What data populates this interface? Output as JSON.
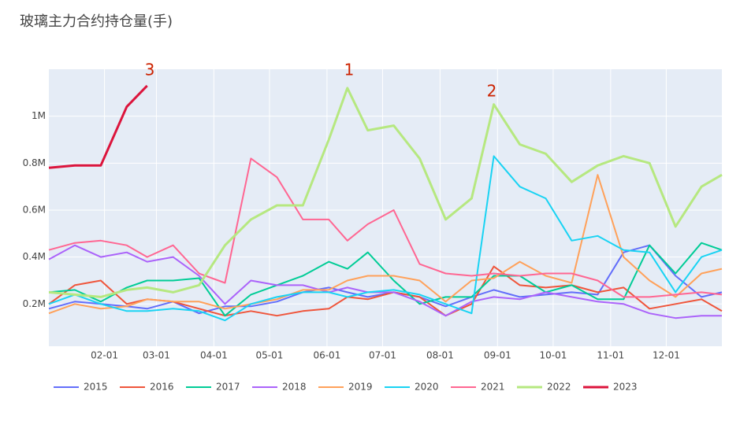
{
  "chart_data": {
    "type": "line",
    "title": "玻璃主力合约持仓量(手)",
    "x": [
      "01-02",
      "01-16",
      "01-30",
      "02-13",
      "02-24",
      "03-10",
      "03-24",
      "04-07",
      "04-21",
      "05-05",
      "05-19",
      "06-02",
      "06-12",
      "06-23",
      "07-07",
      "07-21",
      "08-04",
      "08-18",
      "08-30",
      "09-13",
      "09-27",
      "10-11",
      "10-25",
      "11-08",
      "11-22",
      "12-06",
      "12-20",
      "12-31"
    ],
    "xlim": [
      "01-02",
      "12-31"
    ],
    "xticks": [
      "02-01",
      "03-01",
      "04-01",
      "05-01",
      "06-01",
      "07-01",
      "08-01",
      "09-01",
      "10-01",
      "11-01",
      "12-01"
    ],
    "ylim": [
      20000,
      1200000
    ],
    "yticks": [
      {
        "value": 200000,
        "label": "0.2M"
      },
      {
        "value": 400000,
        "label": "0.4M"
      },
      {
        "value": 600000,
        "label": "0.6M"
      },
      {
        "value": 800000,
        "label": "0.8M"
      },
      {
        "value": 1000000,
        "label": "1M"
      }
    ],
    "grid": true,
    "legend": "bottom",
    "annotations": [
      "1",
      "2",
      "3"
    ],
    "series": [
      {
        "name": "2015",
        "color": "#636efa",
        "width": 2,
        "values": [
          180000,
          210000,
          200000,
          190000,
          180000,
          210000,
          160000,
          190000,
          190000,
          210000,
          250000,
          270000,
          250000,
          230000,
          250000,
          230000,
          190000,
          230000,
          260000,
          230000,
          240000,
          250000,
          240000,
          420000,
          450000,
          320000,
          230000,
          250000
        ]
      },
      {
        "name": "2016",
        "color": "#ef553b",
        "width": 2,
        "values": [
          200000,
          280000,
          300000,
          200000,
          220000,
          210000,
          180000,
          150000,
          170000,
          150000,
          170000,
          180000,
          230000,
          220000,
          250000,
          230000,
          150000,
          200000,
          360000,
          280000,
          270000,
          280000,
          250000,
          270000,
          180000,
          200000,
          220000,
          170000
        ]
      },
      {
        "name": "2017",
        "color": "#00cc96",
        "width": 2,
        "values": [
          250000,
          260000,
          210000,
          270000,
          300000,
          300000,
          310000,
          150000,
          240000,
          280000,
          320000,
          380000,
          350000,
          420000,
          300000,
          200000,
          230000,
          230000,
          320000,
          320000,
          250000,
          280000,
          220000,
          220000,
          450000,
          330000,
          460000,
          430000
        ]
      },
      {
        "name": "2018",
        "color": "#ab63fa",
        "width": 2,
        "values": [
          390000,
          450000,
          400000,
          420000,
          380000,
          400000,
          320000,
          200000,
          300000,
          280000,
          280000,
          250000,
          270000,
          250000,
          250000,
          210000,
          150000,
          210000,
          230000,
          220000,
          250000,
          230000,
          210000,
          200000,
          160000,
          140000,
          150000,
          150000
        ]
      },
      {
        "name": "2019",
        "color": "#ffa15a",
        "width": 2,
        "values": [
          160000,
          200000,
          180000,
          190000,
          220000,
          210000,
          210000,
          180000,
          200000,
          220000,
          260000,
          260000,
          300000,
          320000,
          320000,
          300000,
          210000,
          300000,
          310000,
          380000,
          320000,
          290000,
          750000,
          400000,
          300000,
          230000,
          330000,
          350000
        ]
      },
      {
        "name": "2020",
        "color": "#19d3f3",
        "width": 2,
        "values": [
          200000,
          240000,
          200000,
          170000,
          170000,
          180000,
          170000,
          130000,
          200000,
          230000,
          250000,
          250000,
          230000,
          250000,
          260000,
          240000,
          200000,
          160000,
          830000,
          700000,
          650000,
          470000,
          490000,
          430000,
          420000,
          250000,
          400000,
          430000
        ]
      },
      {
        "name": "2021",
        "color": "#ff6692",
        "width": 2,
        "values": [
          430000,
          460000,
          470000,
          450000,
          400000,
          450000,
          330000,
          290000,
          820000,
          740000,
          560000,
          560000,
          470000,
          540000,
          600000,
          370000,
          330000,
          320000,
          330000,
          320000,
          330000,
          330000,
          300000,
          230000,
          230000,
          240000,
          250000,
          240000
        ]
      },
      {
        "name": "2022",
        "color": "#b6e880",
        "width": 3,
        "values": [
          250000,
          240000,
          230000,
          260000,
          270000,
          250000,
          280000,
          450000,
          560000,
          620000,
          620000,
          900000,
          1120000,
          940000,
          960000,
          820000,
          560000,
          650000,
          1050000,
          880000,
          840000,
          720000,
          790000,
          830000,
          800000,
          530000,
          700000,
          750000
        ]
      },
      {
        "name": "2023",
        "color": "#dc143c",
        "width": 3,
        "values": [
          780000,
          790000,
          790000,
          1040000,
          1130000,
          null,
          null,
          null,
          null,
          null,
          null,
          null,
          null,
          null,
          null,
          null,
          null,
          null,
          null,
          null,
          null,
          null,
          null,
          null,
          null,
          null,
          null,
          null
        ]
      }
    ]
  }
}
